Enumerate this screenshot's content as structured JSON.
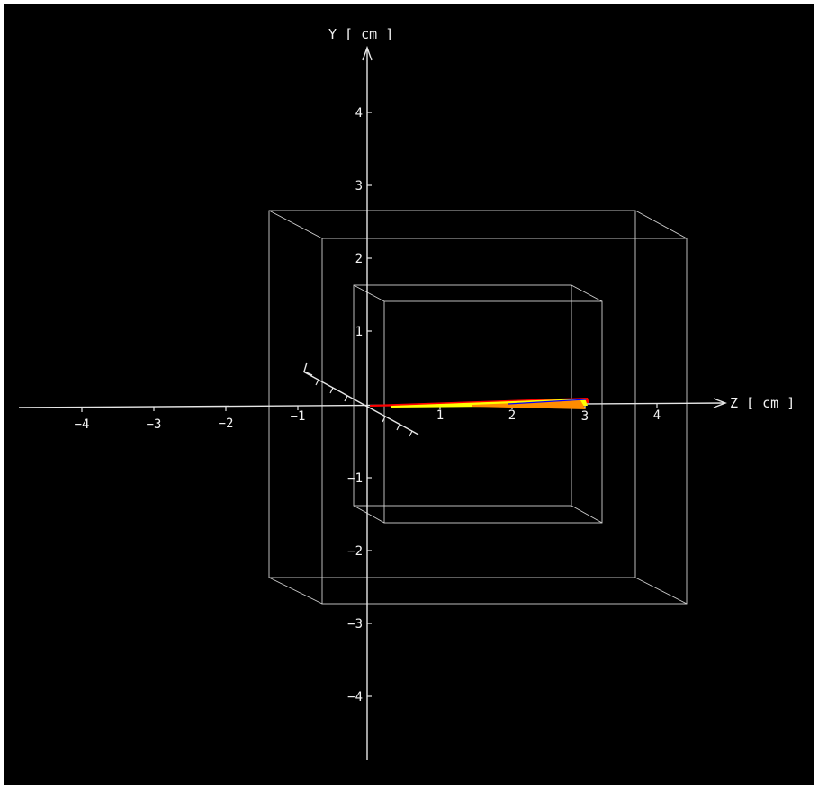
{
  "viewer": {
    "background": "#000000",
    "axis_color": "#e6e6e6",
    "box_color": "#d0d0d0"
  },
  "axes": {
    "y_title": "Y [ cm ]",
    "z_title": "Z [ cm ]",
    "y_ticks": [
      "4",
      "3",
      "2",
      "1",
      "−1",
      "−2",
      "−3",
      "−4"
    ],
    "z_ticks": [
      "−4",
      "−3",
      "−2",
      "−1",
      "1",
      "2",
      "3",
      "4"
    ]
  },
  "track": {
    "colors": [
      "#ff0000",
      "#ffff00",
      "#ff8c00",
      "#0000ff"
    ]
  }
}
